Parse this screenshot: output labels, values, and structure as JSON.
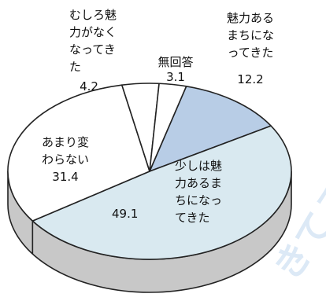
{
  "chart_data": {
    "type": "pie",
    "style": "3d-exploded-oval",
    "legend": "none",
    "slices": [
      {
        "name": "魅力あるまちになってきた",
        "label_lines": [
          "魅力ある",
          "まちにな",
          "ってきた"
        ],
        "value": 12.2,
        "value_label": "12.2",
        "color": "#b8cde6"
      },
      {
        "name": "少しは魅力あるまちになってきた",
        "label_lines": [
          "少しは魅",
          "力あるま",
          "ちになっ",
          "てきた"
        ],
        "value": 49.1,
        "value_label": "49.1",
        "color": "#d9e9f0"
      },
      {
        "name": "あまり変わらない",
        "label_lines": [
          "あまり変",
          "わらない"
        ],
        "value": 31.4,
        "value_label": "31.4",
        "color": "#ffffff"
      },
      {
        "name": "むしろ魅力がなくなってきた",
        "label_lines": [
          "むしろ魅",
          "力がなく",
          "なってき",
          "た"
        ],
        "value": 4.2,
        "value_label": "4.2",
        "color": "#ffffff"
      },
      {
        "name": "無回答",
        "label_lines": [
          "無回答"
        ],
        "value": 3.1,
        "value_label": "3.1",
        "color": "#ffffff"
      }
    ],
    "side_color": "#c8c8c8"
  },
  "watermark": "きてるな"
}
